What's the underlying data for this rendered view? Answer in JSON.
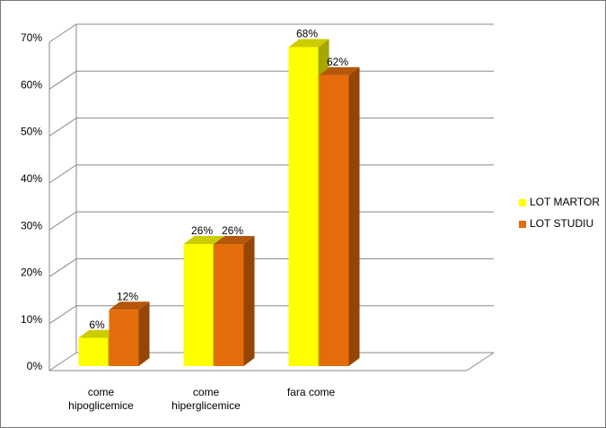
{
  "chart_data": {
    "type": "bar3d",
    "categories": [
      "come hipoglicemice",
      "come hiperglicemice",
      "fara come"
    ],
    "series": [
      {
        "name": "LOT MARTOR",
        "color": "#ffff00",
        "values": [
          6,
          26,
          68
        ],
        "value_labels": [
          "6%",
          "26%",
          "68%"
        ]
      },
      {
        "name": "LOT STUDIU",
        "color": "#e46c0a",
        "values": [
          12,
          26,
          62
        ],
        "value_labels": [
          "12%",
          "26%",
          "62%"
        ]
      }
    ],
    "ylim": [
      0,
      70
    ],
    "yticks": [
      {
        "value": 0,
        "label": "0%"
      },
      {
        "value": 10,
        "label": "10%"
      },
      {
        "value": 20,
        "label": "20%"
      },
      {
        "value": 30,
        "label": "30%"
      },
      {
        "value": 40,
        "label": "40%"
      },
      {
        "value": 50,
        "label": "50%"
      },
      {
        "value": 60,
        "label": "60%"
      },
      {
        "value": 70,
        "label": "70%"
      }
    ],
    "grid": true,
    "legend": "right"
  }
}
